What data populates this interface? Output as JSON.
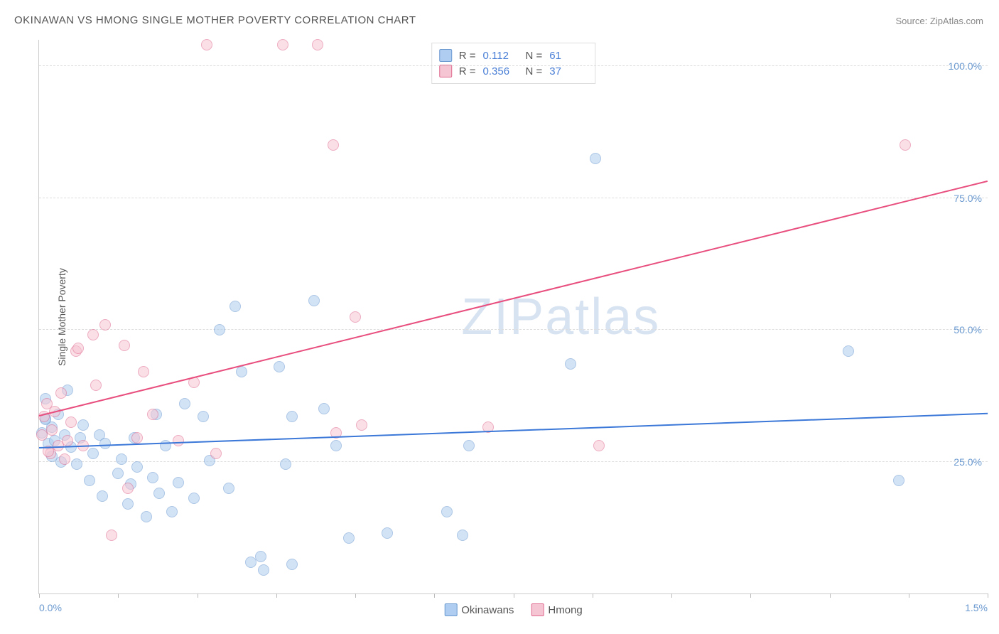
{
  "title": "OKINAWAN VS HMONG SINGLE MOTHER POVERTY CORRELATION CHART",
  "source_label": "Source: ZipAtlas.com",
  "yaxis_label": "Single Mother Poverty",
  "watermark": {
    "bold": "ZIP",
    "light": "atlas"
  },
  "chart": {
    "type": "scatter",
    "background_color": "#ffffff",
    "grid_color": "#dddddd",
    "axis_color": "#cccccc",
    "tick_label_color": "#6a99d0",
    "xlim": [
      0.0,
      1.5
    ],
    "ylim": [
      0.0,
      105.0
    ],
    "xticks": [
      0.0,
      0.125,
      0.25,
      0.375,
      0.5,
      0.625,
      0.75,
      0.875,
      1.0,
      1.125,
      1.25,
      1.375,
      1.5
    ],
    "xtick_labels": {
      "0": "0.0%",
      "1.5": "1.5%"
    },
    "yticks": [
      25.0,
      50.0,
      75.0,
      100.0
    ],
    "ytick_labels": [
      "25.0%",
      "50.0%",
      "75.0%",
      "100.0%"
    ],
    "point_radius": 8,
    "point_stroke_width": 1.5,
    "trend_line_width": 2,
    "series": [
      {
        "name": "Okinawans",
        "fill": "#aecdf0",
        "stroke": "#6a99d0",
        "fill_opacity": 0.55,
        "R": "0.112",
        "N": "61",
        "trend": {
          "y_at_xmin": 27.5,
          "y_at_xmax": 34.0,
          "color": "#3b78d8"
        },
        "points": [
          [
            0.005,
            30.5
          ],
          [
            0.01,
            33.2
          ],
          [
            0.01,
            37.0
          ],
          [
            0.015,
            28.4
          ],
          [
            0.02,
            26.0
          ],
          [
            0.02,
            31.5
          ],
          [
            0.025,
            29.0
          ],
          [
            0.03,
            34.0
          ],
          [
            0.035,
            25.0
          ],
          [
            0.04,
            30.0
          ],
          [
            0.045,
            38.5
          ],
          [
            0.05,
            27.8
          ],
          [
            0.06,
            24.5
          ],
          [
            0.065,
            29.5
          ],
          [
            0.07,
            32.0
          ],
          [
            0.08,
            21.5
          ],
          [
            0.085,
            26.5
          ],
          [
            0.095,
            30.0
          ],
          [
            0.1,
            18.5
          ],
          [
            0.105,
            28.5
          ],
          [
            0.125,
            22.8
          ],
          [
            0.13,
            25.5
          ],
          [
            0.14,
            17.0
          ],
          [
            0.145,
            20.8
          ],
          [
            0.15,
            29.5
          ],
          [
            0.155,
            24.0
          ],
          [
            0.17,
            14.5
          ],
          [
            0.18,
            22.0
          ],
          [
            0.185,
            34.0
          ],
          [
            0.19,
            19.0
          ],
          [
            0.2,
            28.0
          ],
          [
            0.21,
            15.5
          ],
          [
            0.22,
            21.0
          ],
          [
            0.23,
            36.0
          ],
          [
            0.245,
            18.0
          ],
          [
            0.26,
            33.5
          ],
          [
            0.27,
            25.2
          ],
          [
            0.285,
            50.0
          ],
          [
            0.3,
            20.0
          ],
          [
            0.31,
            54.5
          ],
          [
            0.32,
            42.0
          ],
          [
            0.335,
            6.0
          ],
          [
            0.35,
            7.0
          ],
          [
            0.355,
            4.5
          ],
          [
            0.38,
            43.0
          ],
          [
            0.39,
            24.5
          ],
          [
            0.4,
            33.5
          ],
          [
            0.4,
            5.5
          ],
          [
            0.435,
            55.5
          ],
          [
            0.45,
            35.0
          ],
          [
            0.47,
            28.0
          ],
          [
            0.49,
            10.5
          ],
          [
            0.55,
            11.5
          ],
          [
            0.645,
            15.5
          ],
          [
            0.67,
            11.0
          ],
          [
            0.68,
            28.0
          ],
          [
            0.84,
            43.5
          ],
          [
            0.88,
            82.5
          ],
          [
            1.28,
            46.0
          ],
          [
            1.36,
            21.5
          ],
          [
            0.01,
            33.0
          ]
        ]
      },
      {
        "name": "Hmong",
        "fill": "#f6c5d3",
        "stroke": "#e06a8f",
        "fill_opacity": 0.55,
        "R": "0.356",
        "N": "37",
        "trend": {
          "y_at_xmin": 33.5,
          "y_at_xmax": 78.0,
          "color": "#e84e7e"
        },
        "points": [
          [
            0.004,
            30.0
          ],
          [
            0.008,
            33.5
          ],
          [
            0.012,
            36.0
          ],
          [
            0.018,
            26.5
          ],
          [
            0.02,
            31.0
          ],
          [
            0.025,
            34.5
          ],
          [
            0.03,
            28.0
          ],
          [
            0.035,
            38.0
          ],
          [
            0.04,
            25.5
          ],
          [
            0.045,
            29.0
          ],
          [
            0.05,
            32.5
          ],
          [
            0.058,
            46.0
          ],
          [
            0.062,
            46.5
          ],
          [
            0.07,
            28.0
          ],
          [
            0.085,
            49.0
          ],
          [
            0.09,
            39.5
          ],
          [
            0.105,
            51.0
          ],
          [
            0.115,
            11.0
          ],
          [
            0.135,
            47.0
          ],
          [
            0.14,
            20.0
          ],
          [
            0.155,
            29.5
          ],
          [
            0.165,
            42.0
          ],
          [
            0.18,
            34.0
          ],
          [
            0.22,
            29.0
          ],
          [
            0.245,
            40.0
          ],
          [
            0.265,
            104.0
          ],
          [
            0.28,
            26.5
          ],
          [
            0.385,
            104.0
          ],
          [
            0.44,
            104.0
          ],
          [
            0.465,
            85.0
          ],
          [
            0.47,
            30.5
          ],
          [
            0.5,
            52.5
          ],
          [
            0.51,
            32.0
          ],
          [
            0.71,
            31.5
          ],
          [
            0.885,
            28.0
          ],
          [
            1.37,
            85.0
          ],
          [
            0.015,
            27.0
          ]
        ]
      }
    ],
    "legend_bottom": [
      {
        "label": "Okinawans",
        "fill": "#aecdf0",
        "stroke": "#6a99d0"
      },
      {
        "label": "Hmong",
        "fill": "#f6c5d3",
        "stroke": "#e06a8f"
      }
    ]
  }
}
